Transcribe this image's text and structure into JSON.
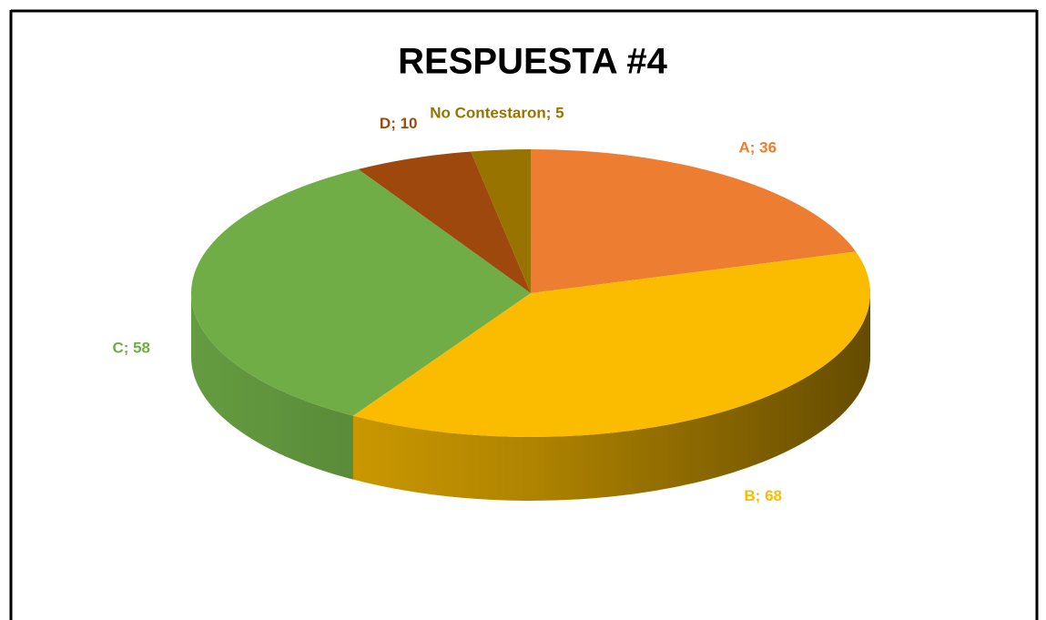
{
  "chart_data": {
    "type": "pie",
    "title": "RESPUESTA #4",
    "categories": [
      "A",
      "B",
      "C",
      "D",
      "No Contestaron"
    ],
    "values": [
      36,
      68,
      58,
      10,
      5
    ],
    "value_labels": [
      "A; 36",
      "B; 68",
      "C; 58",
      "D; 10",
      "No Contestaron; 5"
    ],
    "colors": [
      "#ed7d31",
      "#fbbc00",
      "#70ad47",
      "#9e480e",
      "#997300"
    ]
  }
}
